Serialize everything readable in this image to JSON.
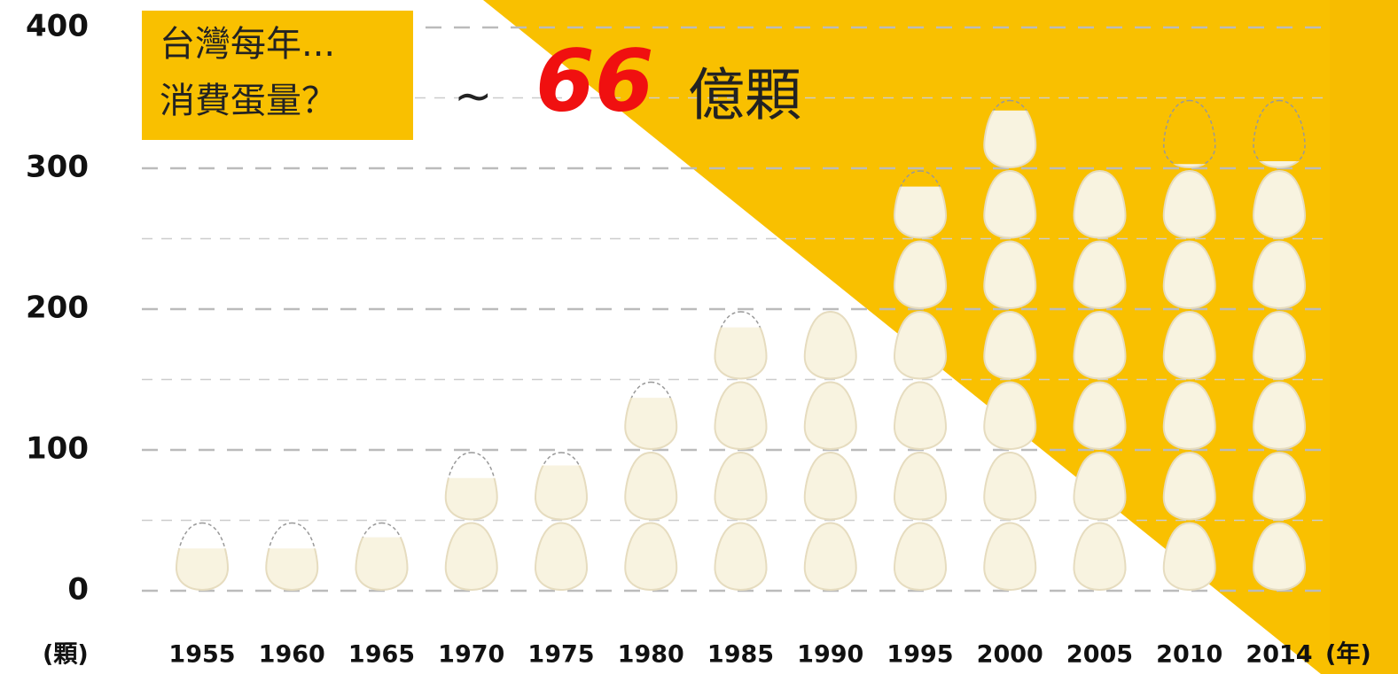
{
  "chart_data": {
    "type": "egg-pictograph",
    "annotation": [
      "台灣每年...",
      "消費蛋量？"
    ],
    "headline": {
      "prefix": "~",
      "number": "66",
      "unit": "億顆"
    },
    "y_unit_label": "(顆)",
    "x_unit_label": "(年)",
    "categories": [
      "1955",
      "1960",
      "1965",
      "1970",
      "1975",
      "1980",
      "1985",
      "1990",
      "1995",
      "2000",
      "2005",
      "2010",
      "2014"
    ],
    "values": [
      30,
      30,
      38,
      80,
      89,
      137,
      187,
      200,
      287,
      341,
      300,
      303,
      305
    ],
    "color": "#f8f3e0",
    "ylim": [
      0,
      400
    ],
    "yticks": [
      0,
      100,
      200,
      300,
      400
    ],
    "grid": true
  }
}
